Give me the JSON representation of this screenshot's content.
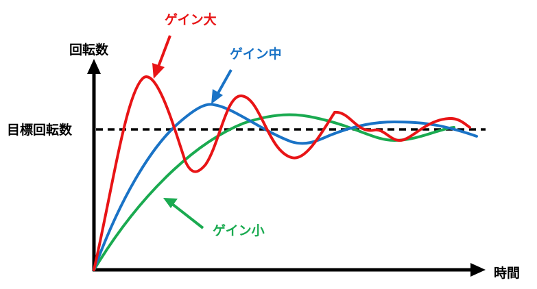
{
  "labels": {
    "y_axis": "回転数",
    "x_axis": "時間",
    "target": "目標回転数",
    "gain_high": "ゲイン大",
    "gain_mid": "ゲイン中",
    "gain_low": "ゲイン小"
  },
  "colors": {
    "gain_high": "#e81416",
    "gain_mid": "#1a73c6",
    "gain_low": "#1aaa50",
    "axis": "#000000",
    "text": "#000000"
  },
  "curves": [
    {
      "key": "gain_high",
      "response": "underdamped-strong"
    },
    {
      "key": "gain_mid",
      "response": "underdamped-moderate"
    },
    {
      "key": "gain_low",
      "response": "overdamped-slow"
    }
  ]
}
